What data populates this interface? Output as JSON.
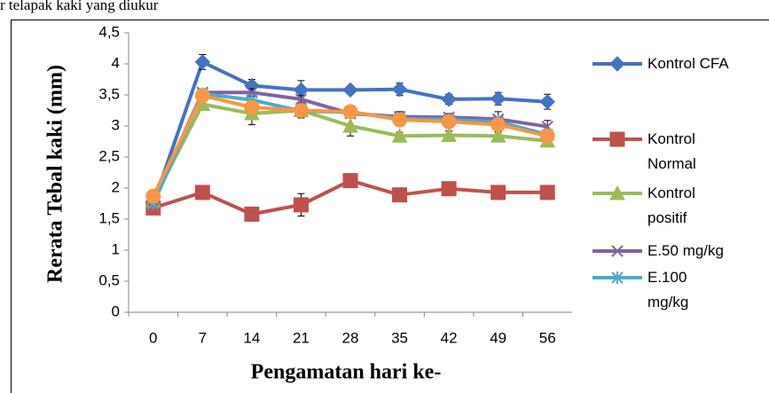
{
  "chart_data": {
    "type": "line",
    "caption": "r telapak kaki yang diukur",
    "x_label": "Pengamatan hari ke-",
    "y_label": "Rerata Tebal kaki (mm)",
    "categories": [
      "0",
      "7",
      "14",
      "21",
      "28",
      "35",
      "42",
      "49",
      "56"
    ],
    "ylim": [
      0,
      4.5
    ],
    "yticks": [
      0,
      {
        "value": 0.5,
        "label": "0,5"
      },
      1,
      {
        "value": 1.5,
        "label": "1,5"
      },
      2,
      {
        "value": 2.5,
        "label": "2,5"
      },
      3,
      {
        "value": 3.5,
        "label": "3,5"
      },
      4,
      {
        "value": 4.5,
        "label": "4,5"
      }
    ],
    "grid": false,
    "legend": "right",
    "series": [
      {
        "name": "Kontrol CFA",
        "color": "#4472c4",
        "marker": "diamond",
        "values": [
          1.75,
          4.03,
          3.65,
          3.58,
          3.58,
          3.59,
          3.43,
          3.44,
          3.39
        ],
        "errors": [
          0.05,
          0.12,
          0.1,
          0.15,
          0.06,
          0.1,
          0.08,
          0.1,
          0.12
        ]
      },
      {
        "name": "Kontrol Normal",
        "color": "#c0504d",
        "marker": "square",
        "values": [
          1.68,
          1.93,
          1.58,
          1.73,
          2.12,
          1.89,
          1.99,
          1.93,
          1.93
        ],
        "errors": [
          0.04,
          0.06,
          0.05,
          0.18,
          0.08,
          0.06,
          0.05,
          0.05,
          0.08
        ]
      },
      {
        "name": "Kontrol positif",
        "color": "#9bbb59",
        "marker": "triangle",
        "values": [
          1.8,
          3.35,
          3.2,
          3.25,
          3.0,
          2.84,
          2.85,
          2.84,
          2.76
        ],
        "errors": [
          0.04,
          0.1,
          0.18,
          0.12,
          0.16,
          0.06,
          0.07,
          0.06,
          0.06
        ]
      },
      {
        "name": "E.50 mg/kg",
        "color": "#8064a2",
        "marker": "x",
        "values": [
          1.8,
          3.54,
          3.54,
          3.43,
          3.2,
          3.15,
          3.14,
          3.11,
          2.99
        ],
        "errors": [
          0.04,
          0.06,
          0.06,
          0.06,
          0.06,
          0.08,
          0.06,
          0.12,
          0.1
        ]
      },
      {
        "name": "E.100 mg/kg",
        "color": "#4bacc6",
        "marker": "star",
        "values": [
          1.75,
          3.52,
          3.42,
          3.24,
          3.22,
          3.12,
          3.1,
          3.07,
          2.86
        ],
        "errors": [
          0.04,
          0.06,
          0.06,
          0.06,
          0.06,
          0.06,
          0.06,
          0.06,
          0.06
        ]
      },
      {
        "color": "#f79646",
        "marker": "circle",
        "values": [
          1.87,
          3.49,
          3.3,
          3.25,
          3.23,
          3.1,
          3.07,
          3.02,
          2.84
        ],
        "errors": [
          0.04,
          0.06,
          0.06,
          0.06,
          0.06,
          0.06,
          0.06,
          0.06,
          0.06
        ]
      }
    ]
  }
}
